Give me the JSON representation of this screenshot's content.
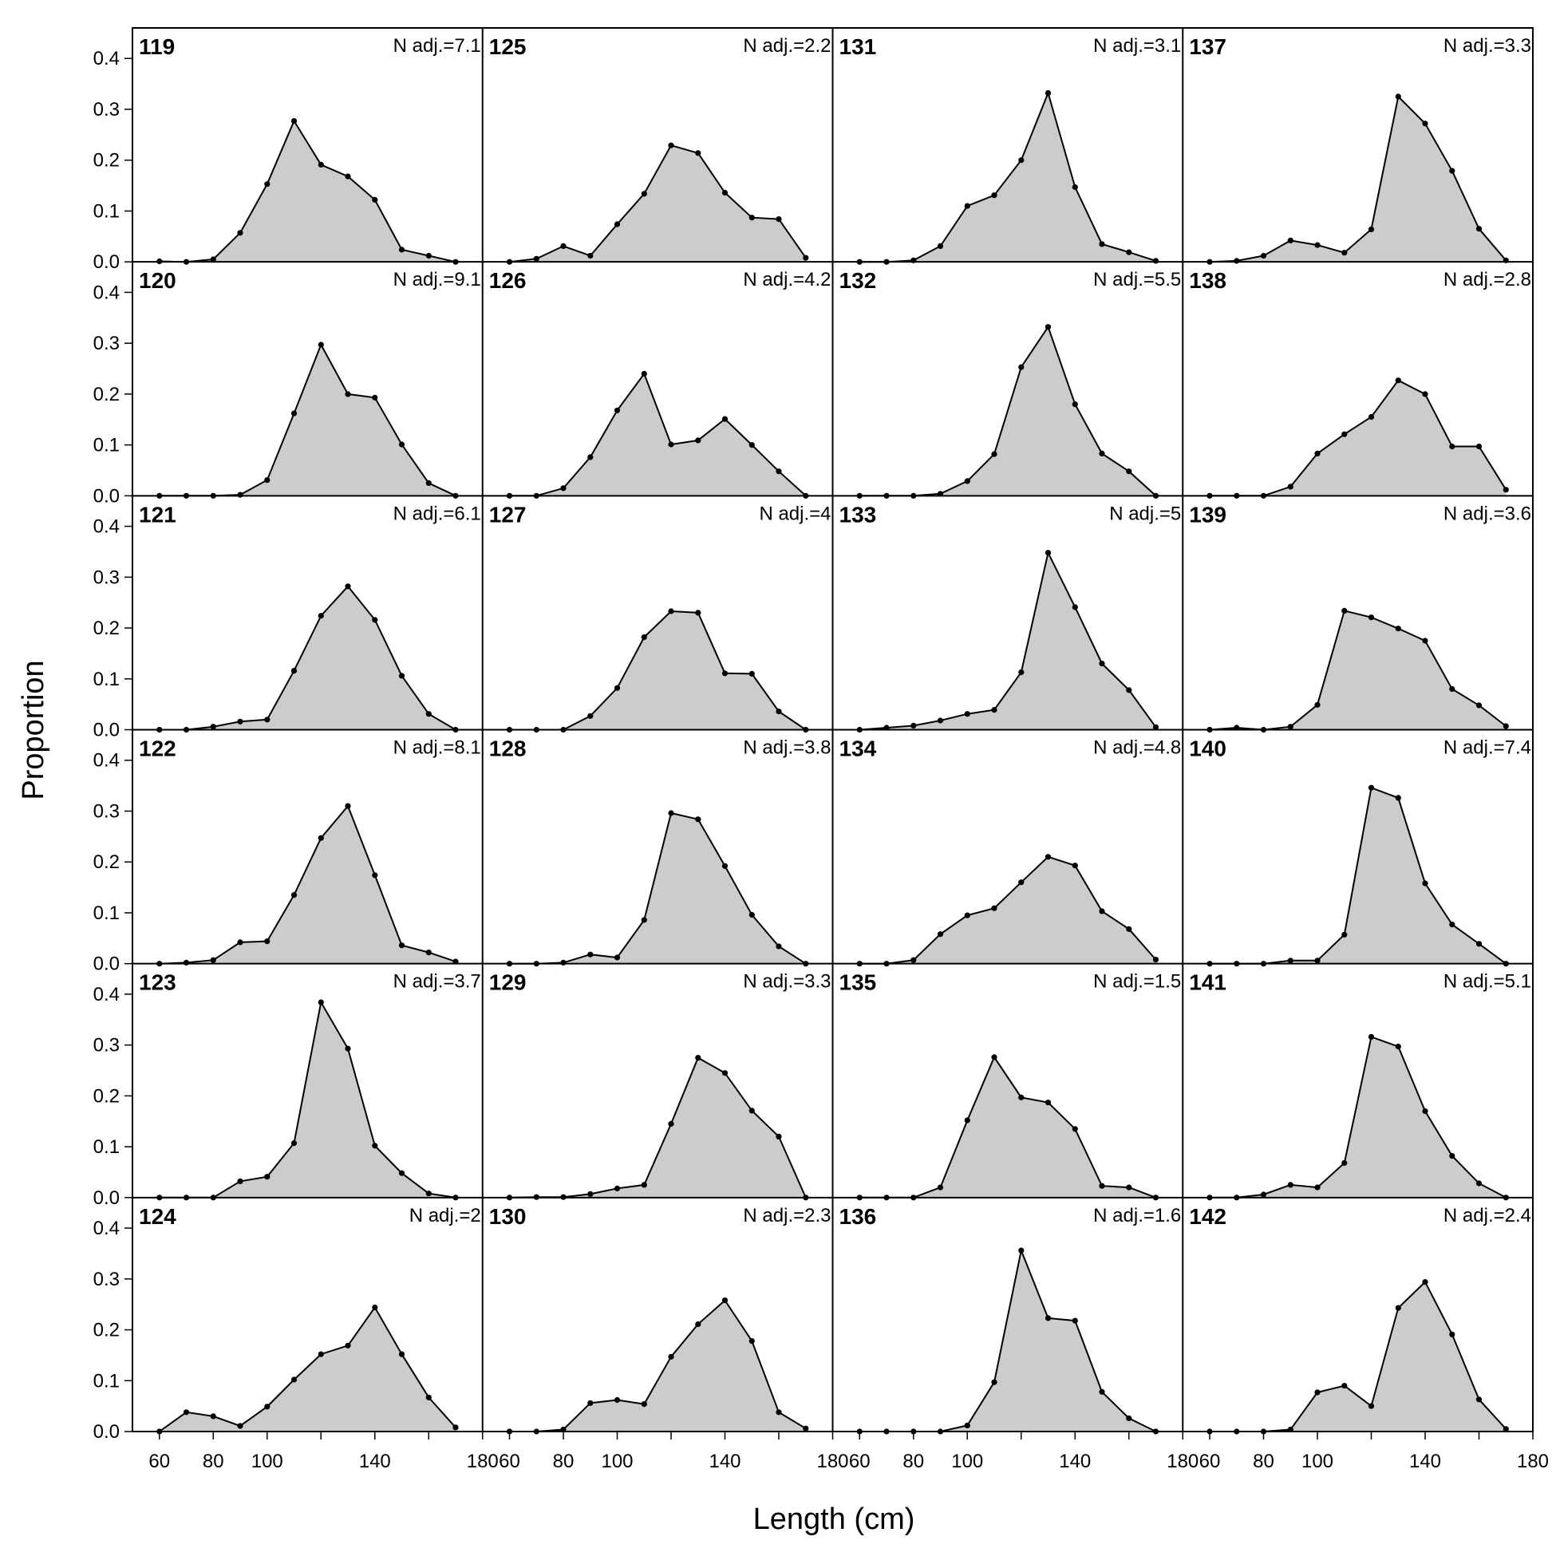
{
  "chart_data": {
    "type": "area",
    "xlabel": "Length (cm)",
    "ylabel": "Proportion",
    "xlim": [
      50,
      180
    ],
    "ylim": [
      0,
      0.46
    ],
    "x_ticks": [
      60,
      80,
      100,
      140,
      180
    ],
    "y_ticks": [
      0.0,
      0.1,
      0.2,
      0.3,
      0.4
    ],
    "grid": false,
    "layout": {
      "rows": 6,
      "cols": 4,
      "order": "column-major"
    },
    "x": [
      60,
      70,
      80,
      90,
      100,
      110,
      120,
      130,
      140,
      150,
      160,
      170
    ],
    "panels": [
      {
        "id": "119",
        "nadj": "N adj.=7.1",
        "values": [
          0.001,
          0.0,
          0.005,
          0.057,
          0.153,
          0.277,
          0.191,
          0.168,
          0.122,
          0.024,
          0.012,
          0.0
        ]
      },
      {
        "id": "120",
        "nadj": "N adj.=9.1",
        "values": [
          0.0,
          0.0,
          0.0,
          0.002,
          0.031,
          0.162,
          0.297,
          0.2,
          0.193,
          0.101,
          0.025,
          0.0
        ]
      },
      {
        "id": "121",
        "nadj": "N adj.=6.1",
        "values": [
          0.0,
          0.0,
          0.006,
          0.016,
          0.02,
          0.116,
          0.224,
          0.282,
          0.216,
          0.106,
          0.031,
          0.0
        ]
      },
      {
        "id": "122",
        "nadj": "N adj.=8.1",
        "values": [
          0.0,
          0.002,
          0.007,
          0.042,
          0.044,
          0.135,
          0.247,
          0.31,
          0.174,
          0.036,
          0.022,
          0.004
        ]
      },
      {
        "id": "123",
        "nadj": "N adj.=3.7",
        "values": [
          0.0,
          0.0,
          0.0,
          0.032,
          0.041,
          0.107,
          0.384,
          0.293,
          0.102,
          0.048,
          0.008,
          0.0
        ]
      },
      {
        "id": "124",
        "nadj": "N adj.=2",
        "values": [
          0.0,
          0.038,
          0.03,
          0.011,
          0.049,
          0.102,
          0.152,
          0.169,
          0.244,
          0.152,
          0.067,
          0.008
        ]
      },
      {
        "id": "125",
        "nadj": "N adj.=2.2",
        "values": [
          0.0,
          0.006,
          0.031,
          0.012,
          0.074,
          0.134,
          0.229,
          0.214,
          0.136,
          0.087,
          0.084,
          0.008
        ]
      },
      {
        "id": "126",
        "nadj": "N adj.=4.2",
        "values": [
          0.0,
          0.0,
          0.015,
          0.076,
          0.168,
          0.24,
          0.101,
          0.109,
          0.151,
          0.1,
          0.048,
          0.0
        ]
      },
      {
        "id": "127",
        "nadj": "N adj.=4",
        "values": [
          0.0,
          0.0,
          0.0,
          0.027,
          0.082,
          0.182,
          0.233,
          0.23,
          0.111,
          0.11,
          0.036,
          0.0
        ]
      },
      {
        "id": "128",
        "nadj": "N adj.=3.8",
        "values": [
          0.0,
          0.0,
          0.002,
          0.018,
          0.012,
          0.086,
          0.296,
          0.284,
          0.192,
          0.096,
          0.034,
          0.0
        ]
      },
      {
        "id": "129",
        "nadj": "N adj.=3.3",
        "values": [
          0.0,
          0.001,
          0.001,
          0.007,
          0.018,
          0.025,
          0.145,
          0.275,
          0.245,
          0.171,
          0.12,
          0.0
        ]
      },
      {
        "id": "130",
        "nadj": "N adj.=2.3",
        "values": [
          0.0,
          0.0,
          0.004,
          0.056,
          0.062,
          0.054,
          0.147,
          0.211,
          0.258,
          0.178,
          0.038,
          0.006
        ]
      },
      {
        "id": "131",
        "nadj": "N adj.=3.1",
        "values": [
          0.0,
          0.0,
          0.003,
          0.031,
          0.11,
          0.131,
          0.2,
          0.332,
          0.147,
          0.035,
          0.019,
          0.002
        ]
      },
      {
        "id": "132",
        "nadj": "N adj.=5.5",
        "values": [
          0.0,
          0.0,
          0.0,
          0.004,
          0.029,
          0.082,
          0.253,
          0.332,
          0.18,
          0.083,
          0.048,
          0.0
        ]
      },
      {
        "id": "133",
        "nadj": "N adj.=5",
        "values": [
          0.0,
          0.004,
          0.008,
          0.018,
          0.031,
          0.039,
          0.113,
          0.348,
          0.241,
          0.13,
          0.078,
          0.005
        ]
      },
      {
        "id": "134",
        "nadj": "N adj.=4.8",
        "values": [
          0.0,
          0.0,
          0.007,
          0.058,
          0.095,
          0.109,
          0.16,
          0.21,
          0.193,
          0.103,
          0.068,
          0.008
        ]
      },
      {
        "id": "135",
        "nadj": "N adj.=1.5",
        "values": [
          0.0,
          0.0,
          0.0,
          0.02,
          0.152,
          0.276,
          0.197,
          0.187,
          0.135,
          0.023,
          0.02,
          0.0
        ]
      },
      {
        "id": "136",
        "nadj": "N adj.=1.6",
        "values": [
          0.0,
          0.0,
          0.0,
          0.0,
          0.012,
          0.097,
          0.356,
          0.223,
          0.218,
          0.078,
          0.026,
          0.0
        ]
      },
      {
        "id": "137",
        "nadj": "N adj.=3.3",
        "values": [
          0.0,
          0.002,
          0.012,
          0.042,
          0.033,
          0.018,
          0.064,
          0.325,
          0.272,
          0.179,
          0.065,
          0.003
        ]
      },
      {
        "id": "138",
        "nadj": "N adj.=2.8",
        "values": [
          0.0,
          0.0,
          0.0,
          0.018,
          0.083,
          0.121,
          0.155,
          0.227,
          0.2,
          0.097,
          0.097,
          0.012
        ]
      },
      {
        "id": "139",
        "nadj": "N adj.=3.6",
        "values": [
          0.0,
          0.004,
          0.0,
          0.006,
          0.049,
          0.234,
          0.221,
          0.199,
          0.175,
          0.08,
          0.048,
          0.007
        ]
      },
      {
        "id": "140",
        "nadj": "N adj.=7.4",
        "values": [
          0.0,
          0.0,
          0.0,
          0.006,
          0.006,
          0.057,
          0.346,
          0.326,
          0.158,
          0.077,
          0.039,
          0.0
        ]
      },
      {
        "id": "141",
        "nadj": "N adj.=5.1",
        "values": [
          0.0,
          0.0,
          0.006,
          0.025,
          0.02,
          0.068,
          0.316,
          0.297,
          0.17,
          0.082,
          0.028,
          0.0
        ]
      },
      {
        "id": "142",
        "nadj": "N adj.=2.4",
        "values": [
          0.0,
          0.0,
          0.0,
          0.004,
          0.077,
          0.09,
          0.05,
          0.243,
          0.294,
          0.191,
          0.063,
          0.005
        ]
      }
    ]
  },
  "colors": {
    "fill": "#cccccc",
    "line": "#000000",
    "frame": "#000000"
  }
}
